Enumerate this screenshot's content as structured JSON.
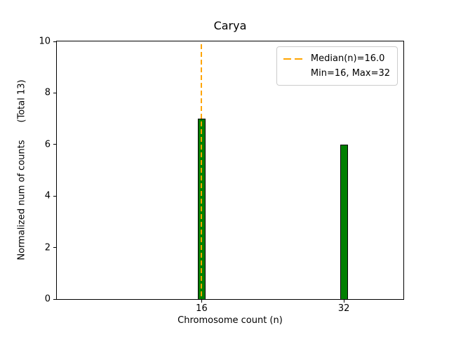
{
  "chart_data": {
    "type": "bar",
    "title": "Carya",
    "xlabel": "Chromosome count (n)",
    "ylabel": "Normalized num of counts      (Total 13)",
    "total_label": "(Total 13)",
    "categories": [
      16,
      32
    ],
    "values": [
      7,
      6
    ],
    "total": 13,
    "xlim": [
      -0.3,
      38.7
    ],
    "ylim": [
      0,
      10
    ],
    "xticks": [
      16,
      32
    ],
    "yticks": [
      0,
      2,
      4,
      6,
      8,
      10
    ],
    "grid": false,
    "bar_color": "#008000",
    "bar_edge_color": "#000000",
    "bar_width_units": 0.85,
    "median_line": {
      "x": 16.0,
      "color": "#ffa500",
      "style": "dashed"
    },
    "legend": {
      "position": "upper-right",
      "entries": [
        "Median(n)=16.0",
        "Min=16, Max=32"
      ]
    }
  }
}
